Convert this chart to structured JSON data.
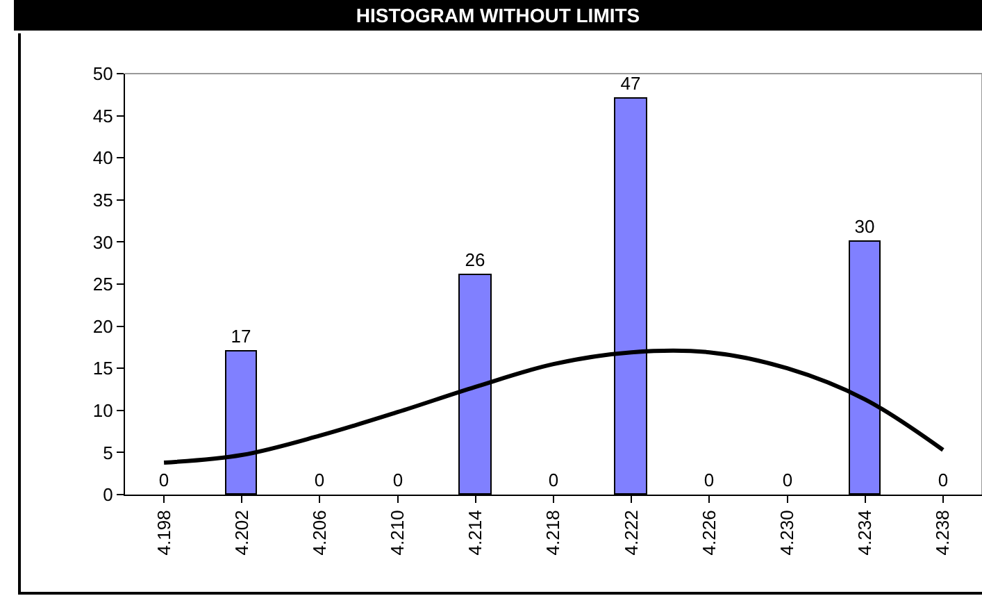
{
  "chart_data": {
    "type": "bar",
    "title": "HISTOGRAM WITHOUT LIMITS",
    "categories": [
      "4.198",
      "4.202",
      "4.206",
      "4.210",
      "4.214",
      "4.218",
      "4.222",
      "4.226",
      "4.230",
      "4.234",
      "4.238"
    ],
    "series": [
      {
        "color": "#8080ff",
        "values": [
          0,
          17,
          0,
          0,
          26,
          0,
          47,
          0,
          0,
          30,
          0
        ],
        "value_labels": [
          "0",
          "17",
          "0",
          "0",
          "26",
          "0",
          "47",
          "0",
          "0",
          "30",
          "0"
        ]
      },
      {
        "type": "line",
        "color": "#000000",
        "values": [
          3.8,
          4.7,
          7,
          9.8,
          12.8,
          15.5,
          16.9,
          16.9,
          15,
          11.3,
          5.3
        ],
        "marker": "none",
        "line_style": "solid"
      }
    ],
    "ylim": [
      0,
      50
    ],
    "yticks": [
      0,
      5,
      10,
      15,
      20,
      25,
      30,
      35,
      40,
      45,
      50
    ],
    "grid": false
  }
}
